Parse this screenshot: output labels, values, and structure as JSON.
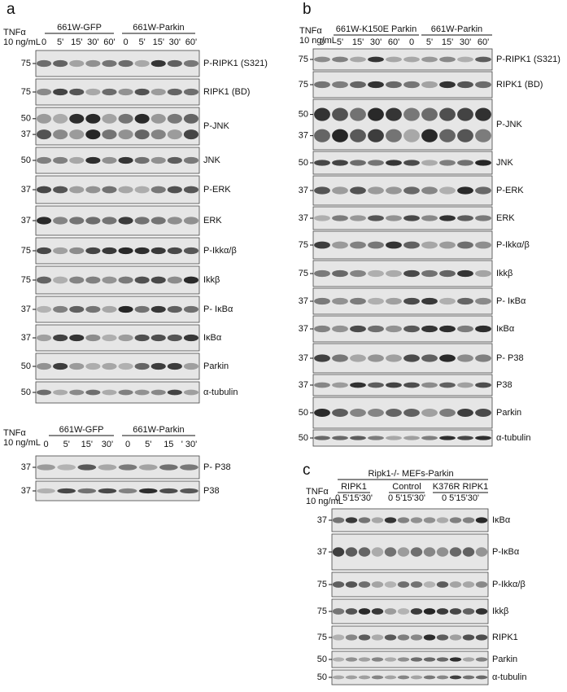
{
  "panel_a": {
    "letter": "a",
    "treatment": [
      "TNFα",
      "10 ng/mL"
    ],
    "groups": [
      "661W-GFP",
      "661W-Parkin"
    ],
    "lanes": [
      "0",
      "5'",
      "15'",
      "30'",
      "60'",
      "0",
      "5'",
      "15'",
      "30'",
      "60'"
    ],
    "blots": [
      {
        "markers": [
          "75"
        ],
        "label": "P-RIPK1 (S321)"
      },
      {
        "markers": [
          "75"
        ],
        "label": "RIPK1 (BD)"
      },
      {
        "markers": [
          "50",
          "37"
        ],
        "label": "P-JNK"
      },
      {
        "markers": [
          "50"
        ],
        "label": "JNK"
      },
      {
        "markers": [
          "37"
        ],
        "label": "P-ERK"
      },
      {
        "markers": [
          "37"
        ],
        "label": "ERK"
      },
      {
        "markers": [
          "75"
        ],
        "label": "P-Ikkα/β"
      },
      {
        "markers": [
          "75"
        ],
        "label": "Ikkβ"
      },
      {
        "markers": [
          "37"
        ],
        "label": "P- IκBα"
      },
      {
        "markers": [
          "37"
        ],
        "label": "IκBα"
      },
      {
        "markers": [
          "50"
        ],
        "label": "Parkin"
      },
      {
        "markers": [
          "50"
        ],
        "label": "α-tubulin"
      }
    ]
  },
  "panel_a2": {
    "treatment": [
      "TNFα",
      "10 ng/mL"
    ],
    "groups": [
      "661W-GFP",
      "661W-Parkin"
    ],
    "lanes": [
      "0",
      "5'",
      "15'",
      "30'",
      "0",
      "5'",
      "15",
      "' 30'"
    ],
    "blots": [
      {
        "markers": [
          "37"
        ],
        "label": "P- P38"
      },
      {
        "markers": [
          "37"
        ],
        "label": "P38"
      }
    ]
  },
  "panel_b": {
    "letter": "b",
    "treatment": [
      "TNFα",
      "10 ng/mL"
    ],
    "groups": [
      "661W-K150E Parkin",
      "661W-Parkin"
    ],
    "lanes": [
      "0",
      "5'",
      "15'",
      "30'",
      "60'",
      "0",
      "5'",
      "15'",
      "30'",
      "60'"
    ],
    "blots": [
      {
        "markers": [
          "75"
        ],
        "label": "P-RIPK1 (S321)"
      },
      {
        "markers": [
          "75"
        ],
        "label": "RIPK1 (BD)"
      },
      {
        "markers": [
          "50",
          "37"
        ],
        "label": "P-JNK"
      },
      {
        "markers": [
          "50"
        ],
        "label": "JNK"
      },
      {
        "markers": [
          "37"
        ],
        "label": "P-ERK"
      },
      {
        "markers": [
          "37"
        ],
        "label": "ERK"
      },
      {
        "markers": [
          "75"
        ],
        "label": "P-Ikkα/β"
      },
      {
        "markers": [
          "75"
        ],
        "label": "Ikkβ"
      },
      {
        "markers": [
          "37"
        ],
        "label": "P- IκBα"
      },
      {
        "markers": [
          "37"
        ],
        "label": "IκBα"
      },
      {
        "markers": [
          "37"
        ],
        "label": "P- P38"
      },
      {
        "markers": [
          "37"
        ],
        "label": "P38"
      },
      {
        "markers": [
          "50"
        ],
        "label": "Parkin"
      },
      {
        "markers": [
          "50"
        ],
        "label": "α-tubulin"
      }
    ]
  },
  "panel_c": {
    "letter": "c",
    "title": "Ripk1-/- MEFs-Parkin",
    "treatment": [
      "TNFα",
      "10 ng/mL"
    ],
    "groups": [
      "RIPK1",
      "Control",
      "K376R RIPK1"
    ],
    "lanes": [
      "0 5'15'30'",
      "0 5'15'30'",
      "0 5'15'30'"
    ],
    "blots": [
      {
        "markers": [
          "37"
        ],
        "label": "IκBα"
      },
      {
        "markers": [
          "37"
        ],
        "label": "P-IκBα"
      },
      {
        "markers": [
          "75"
        ],
        "label": "P-Ikkα/β"
      },
      {
        "markers": [
          "75"
        ],
        "label": "Ikkβ"
      },
      {
        "markers": [
          "75"
        ],
        "label": "RIPK1"
      },
      {
        "markers": [
          "50"
        ],
        "label": "Parkin"
      },
      {
        "markers": [
          "50"
        ],
        "label": "α-tubulin"
      }
    ]
  }
}
